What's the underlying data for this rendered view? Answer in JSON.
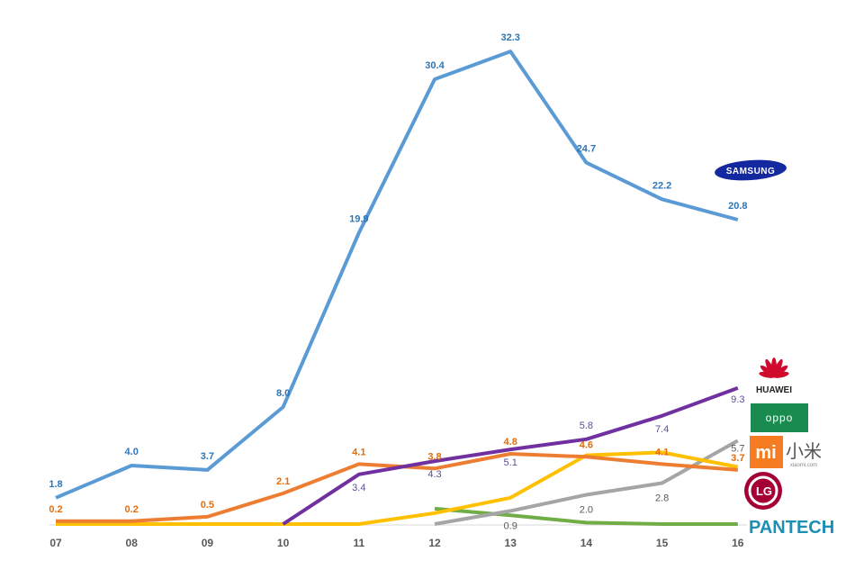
{
  "chart_data": {
    "type": "line",
    "title": "",
    "xlabel": "",
    "ylabel": "",
    "categories": [
      "07",
      "08",
      "09",
      "10",
      "11",
      "12",
      "13",
      "14",
      "15",
      "16"
    ],
    "ylim": [
      0,
      33
    ],
    "grid": false,
    "legend": "logos at right end of each line",
    "series": [
      {
        "brand": "samsung",
        "color": "#5b9bd5",
        "label_color": "#2e75b6",
        "bold_labels": true,
        "values": [
          1.8,
          4.0,
          3.7,
          8.0,
          19.9,
          30.4,
          32.3,
          24.7,
          22.2,
          20.8
        ],
        "labels": [
          "1.8",
          "4.0",
          "3.7",
          "8.0",
          "19.9",
          "30.4",
          "32.3",
          "24.7",
          "22.2",
          "20.8"
        ]
      },
      {
        "brand": "lg",
        "color": "#ed7d31",
        "label_color": "#e46c0a",
        "bold_labels": true,
        "values": [
          0.2,
          0.2,
          0.5,
          2.1,
          4.1,
          3.8,
          4.8,
          4.6,
          4.1,
          3.7
        ],
        "labels": [
          "0.2",
          "0.2",
          "0.5",
          "2.1",
          "4.1",
          "3.8",
          "4.8",
          "4.6",
          "4.1",
          "3.7"
        ]
      },
      {
        "brand": "huawei",
        "color": "#7030a0",
        "label_color": "#5a4f96",
        "bold_labels": false,
        "values": [
          null,
          null,
          null,
          0,
          3.4,
          4.3,
          5.1,
          5.8,
          7.4,
          9.3
        ],
        "labels": [
          null,
          null,
          null,
          null,
          "3.4",
          "4.3",
          "5.1",
          "5.8",
          "7.4",
          "9.3"
        ]
      },
      {
        "brand": "xiaomi",
        "color": "#ffc000",
        "label_color": "#bf9000",
        "bold_labels": false,
        "values": [
          0,
          0,
          0,
          0,
          0,
          0.75,
          1.8,
          4.7,
          4.9,
          3.9
        ],
        "labels": [
          null,
          null,
          null,
          null,
          null,
          null,
          null,
          null,
          null,
          null
        ]
      },
      {
        "brand": "oppo",
        "color": "#a5a5a5",
        "label_color": "#595959",
        "bold_labels": false,
        "values": [
          null,
          null,
          null,
          null,
          null,
          0,
          0.9,
          2.0,
          2.8,
          5.7
        ],
        "labels": [
          null,
          null,
          null,
          null,
          null,
          null,
          "0.9",
          "2.0",
          "2.8",
          "5.7"
        ]
      },
      {
        "brand": "pantech",
        "color": "#70ad47",
        "label_color": "#548235",
        "bold_labels": false,
        "values": [
          null,
          null,
          null,
          null,
          null,
          1.05,
          0.6,
          0.1,
          0,
          0
        ],
        "labels": [
          null,
          null,
          null,
          null,
          null,
          null,
          null,
          null,
          null,
          null
        ]
      }
    ]
  },
  "logos": {
    "samsung": "SAMSUNG",
    "huawei": "HUAWEI",
    "oppo": "oppo",
    "xiaomi_mark": "mi",
    "xiaomi_cn": "小米",
    "xiaomi_url": "xiaomi.com",
    "lg": "LG",
    "pantech": "PANTECH"
  }
}
